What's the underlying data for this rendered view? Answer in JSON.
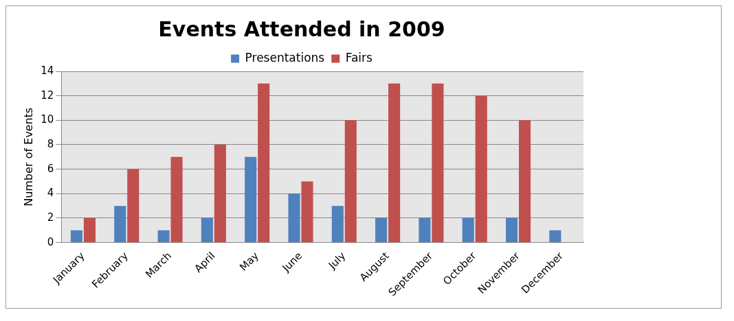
{
  "chart_data": {
    "type": "bar",
    "title": "Events Attended in 2009",
    "ylabel": "Number of Events",
    "categories": [
      "January",
      "February",
      "March",
      "April",
      "May",
      "June",
      "July",
      "August",
      "September",
      "October",
      "November",
      "December"
    ],
    "series": [
      {
        "name": "Presentations",
        "color": "#4f81bd",
        "values": [
          1,
          3,
          1,
          2,
          7,
          4,
          3,
          2,
          2,
          2,
          2,
          1
        ]
      },
      {
        "name": "Fairs",
        "color": "#c0504d",
        "values": [
          2,
          6,
          7,
          8,
          13,
          5,
          10,
          13,
          13,
          12,
          10,
          0
        ]
      }
    ],
    "ylim": [
      0,
      14
    ],
    "yticks": [
      0,
      2,
      4,
      6,
      8,
      10,
      12,
      14
    ],
    "grid": "y",
    "legend": "top"
  }
}
